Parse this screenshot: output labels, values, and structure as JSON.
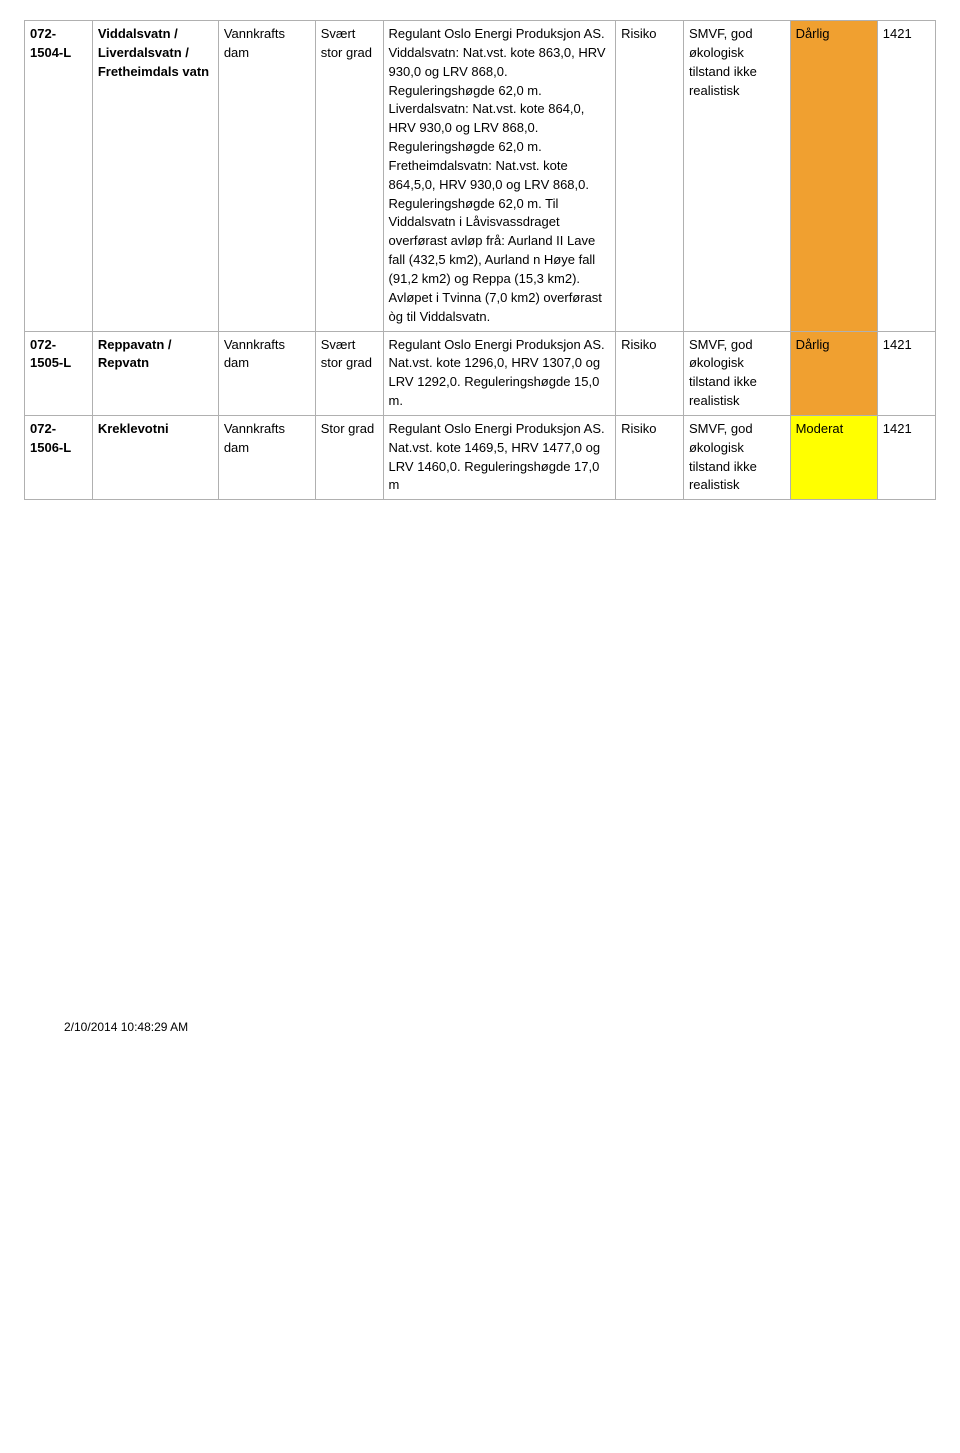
{
  "rows": [
    {
      "id": "072-1504-L",
      "name": "Viddalsvatn / Liverdalsvatn / Fretheimdals vatn",
      "type": "Vannkrafts dam",
      "grad": "Svært stor grad",
      "desc": "Regulant Oslo Energi Produksjon AS. Viddalsvatn: Nat.vst. kote 863,0, HRV 930,0 og LRV 868,0. Reguleringshøgde 62,0 m. Liverdalsvatn: Nat.vst. kote 864,0, HRV 930,0 og LRV 868,0. Reguleringshøgde 62,0 m. Fretheimdalsvatn: Nat.vst. kote 864,5,0, HRV 930,0 og LRV 868,0. Reguleringshøgde 62,0 m. Til Viddalsvatn i Låvisvassdraget overførast avløp frå: Aurland II Lave fall (432,5 km2), Aurland n Høye fall (91,2 km2) og Reppa (15,3 km2). Avløpet i Tvinna (7,0 km2) overførast òg til Viddalsvatn.",
      "risk": "Risiko",
      "just": "SMVF, god økologisk tilstand ikke realistisk",
      "status": "Dårlig",
      "status_color": "#f0a030",
      "code": "1421"
    },
    {
      "id": "072-1505-L",
      "name": "Reppavatn / Repvatn",
      "type": "Vannkrafts dam",
      "grad": "Svært stor grad",
      "desc": "Regulant Oslo Energi Produksjon AS. Nat.vst. kote 1296,0, HRV 1307,0 og LRV 1292,0. Reguleringshøgde 15,0 m.",
      "risk": "Risiko",
      "just": "SMVF, god økologisk tilstand ikke realistisk",
      "status": "Dårlig",
      "status_color": "#f0a030",
      "code": "1421"
    },
    {
      "id": "072-1506-L",
      "name": "Kreklevotni",
      "type": "Vannkrafts dam",
      "grad": "Stor grad",
      "desc": "Regulant Oslo Energi Produksjon AS. Nat.vst. kote 1469,5, HRV 1477,0 og LRV 1460,0. Reguleringshøgde 17,0 m",
      "risk": "Risiko",
      "just": "SMVF, god økologisk tilstand ikke realistisk",
      "status": "Moderat",
      "status_color": "#ffff00",
      "code": "1421"
    }
  ],
  "footer": "2/10/2014 10:48:29 AM"
}
